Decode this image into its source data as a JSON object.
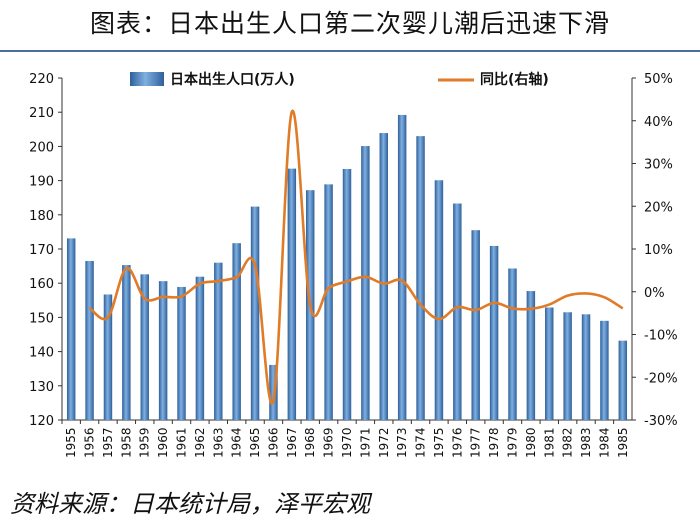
{
  "title": "图表：日本出生人口第二次婴儿潮后迅速下滑",
  "source": "资料来源：日本统计局，泽平宏观",
  "colors": {
    "bar": "#4f86c6",
    "bar_dark": "#2f5f9a",
    "line": "#e07b28"
  },
  "chart_data": {
    "type": "bar",
    "categories": [
      "1955",
      "1956",
      "1957",
      "1958",
      "1959",
      "1960",
      "1961",
      "1962",
      "1963",
      "1964",
      "1965",
      "1966",
      "1967",
      "1968",
      "1969",
      "1970",
      "1971",
      "1972",
      "1973",
      "1974",
      "1975",
      "1976",
      "1977",
      "1978",
      "1979",
      "1980",
      "1981",
      "1982",
      "1983",
      "1984",
      "1985"
    ],
    "series": [
      {
        "name": "日本出生人口(万人)",
        "axis": "left",
        "type": "bar",
        "values": [
          173.1,
          166.5,
          156.7,
          165.3,
          162.6,
          160.6,
          158.9,
          161.9,
          166.0,
          171.7,
          182.4,
          136.1,
          193.5,
          187.2,
          188.9,
          193.4,
          200.1,
          203.9,
          209.2,
          203.0,
          190.1,
          183.3,
          175.5,
          170.9,
          164.3,
          157.7,
          152.9,
          151.5,
          150.9,
          149.0,
          143.2
        ]
      },
      {
        "name": "同比(右轴)",
        "axis": "right",
        "type": "line",
        "values": [
          null,
          -3.8,
          -6.0,
          5.5,
          -1.6,
          -1.2,
          -1.1,
          1.9,
          2.5,
          3.4,
          6.2,
          -25.4,
          42.1,
          -3.3,
          0.9,
          2.4,
          3.5,
          1.9,
          2.6,
          -3.0,
          -6.4,
          -3.6,
          -4.3,
          -2.6,
          -3.9,
          -4.0,
          -3.0,
          -0.9,
          -0.4,
          -1.3,
          -3.9
        ]
      }
    ],
    "ylim": [
      120,
      220
    ],
    "yticks": [
      120,
      130,
      140,
      150,
      160,
      170,
      180,
      190,
      200,
      210,
      220
    ],
    "y2lim": [
      -30,
      50
    ],
    "y2ticks": [
      "-30%",
      "-20%",
      "-10%",
      "0%",
      "10%",
      "20%",
      "30%",
      "40%",
      "50%"
    ],
    "legend": {
      "bar_label": "日本出生人口(万人)",
      "line_label": "同比(右轴)",
      "placement": "top"
    }
  }
}
